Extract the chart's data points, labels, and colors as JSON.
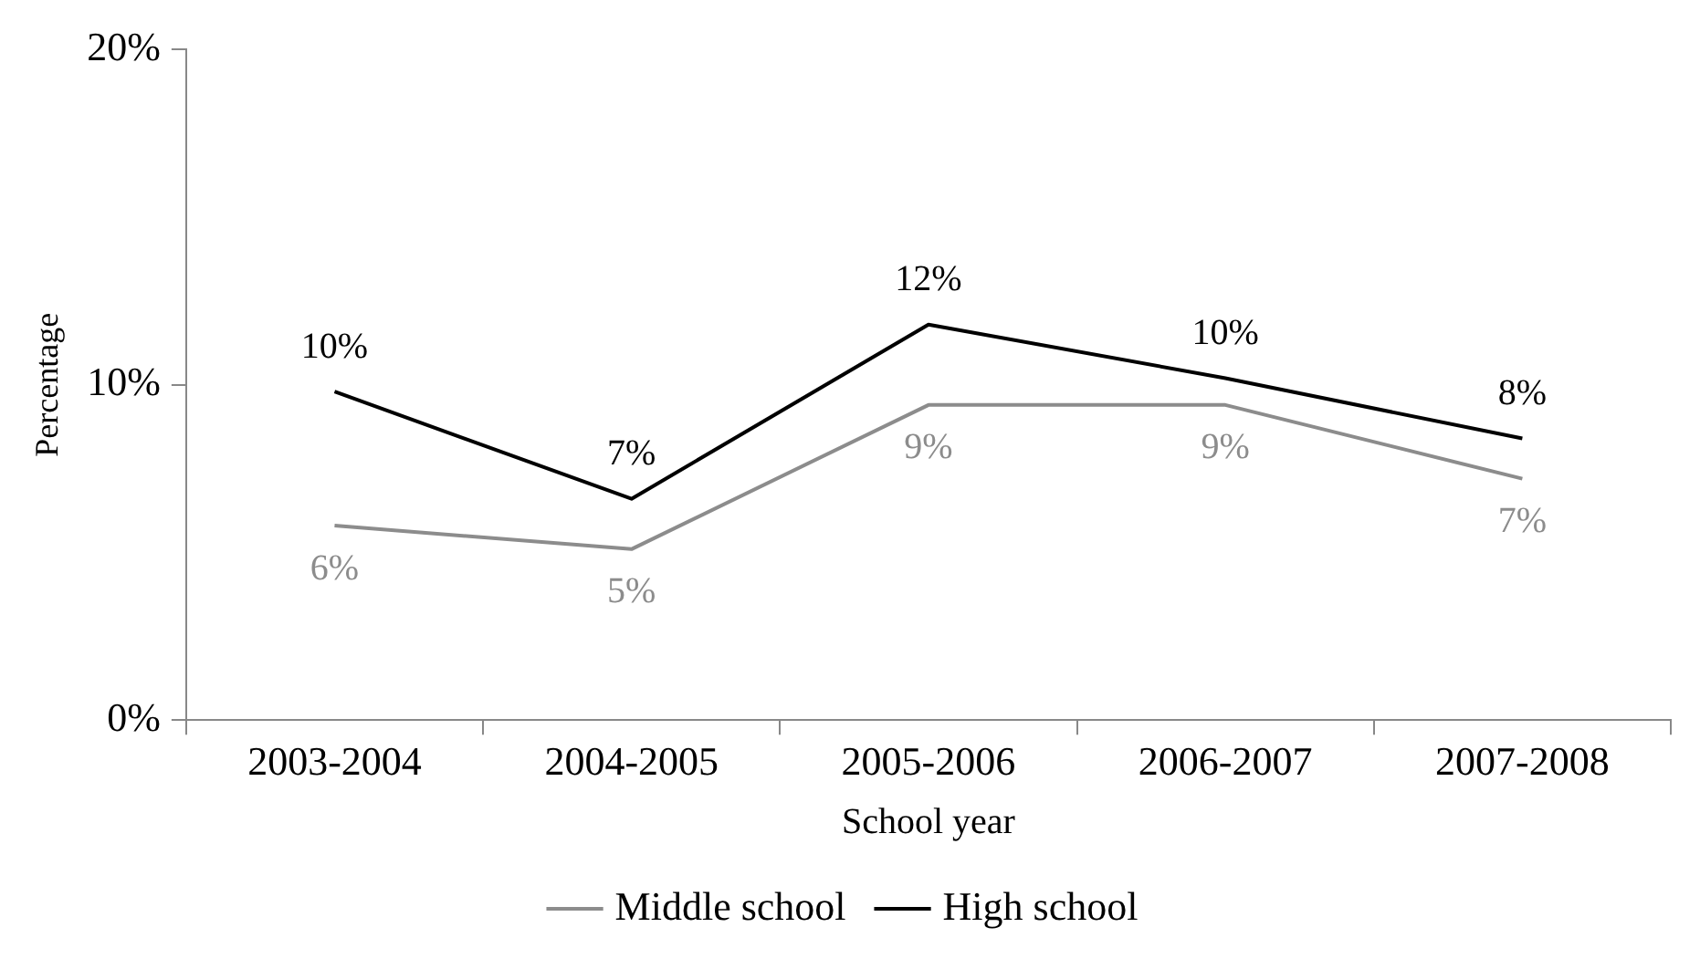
{
  "chart_data": {
    "type": "line",
    "xlabel": "School year",
    "ylabel": "Percentage",
    "categories": [
      "2003-2004",
      "2004-2005",
      "2005-2006",
      "2006-2007",
      "2007-2008"
    ],
    "series": [
      {
        "name": "Middle school",
        "color": "#8c8c8c",
        "values": [
          5.8,
          5.1,
          9.4,
          9.4,
          7.2
        ],
        "value_labels": [
          "6%",
          "5%",
          "9%",
          "9%",
          "7%"
        ]
      },
      {
        "name": "High school",
        "color": "#000000",
        "values": [
          9.8,
          6.6,
          11.8,
          10.2,
          8.4
        ],
        "value_labels": [
          "10%",
          "7%",
          "12%",
          "10%",
          "8%"
        ]
      }
    ],
    "ylim": [
      0,
      20
    ],
    "yticks": [
      {
        "value": 0,
        "label": "0%"
      },
      {
        "value": 10,
        "label": "10%"
      },
      {
        "value": 20,
        "label": "20%"
      }
    ],
    "grid": false,
    "legend": "bottom",
    "marker": "none",
    "line_style": "solid"
  }
}
